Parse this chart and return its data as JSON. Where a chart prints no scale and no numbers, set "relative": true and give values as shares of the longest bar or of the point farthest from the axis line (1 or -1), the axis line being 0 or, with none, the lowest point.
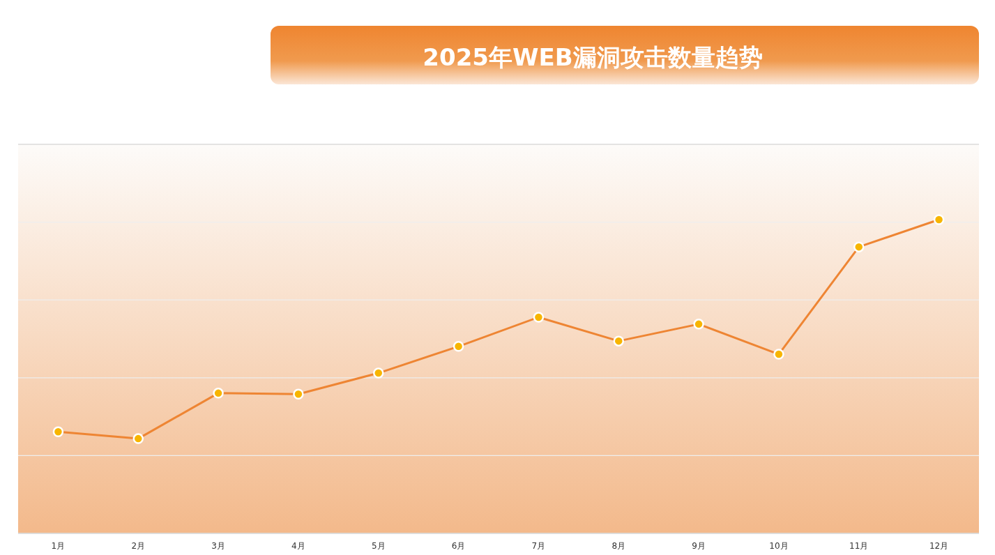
{
  "chart_data": {
    "type": "line",
    "title": "2025年WEB漏洞攻击数量趋势",
    "relative": true,
    "categories": [
      "1月",
      "2月",
      "3月",
      "4月",
      "5月",
      "6月",
      "7月",
      "8月",
      "9月",
      "10月",
      "11月",
      "12月"
    ],
    "series": [
      {
        "color": "#ee8533",
        "values": [
          0.324,
          0.302,
          0.447,
          0.444,
          0.511,
          0.596,
          0.689,
          0.613,
          0.667,
          0.571,
          0.913,
          1
        ]
      }
    ],
    "grid": true,
    "marker": "circle",
    "line_style": "solid"
  }
}
